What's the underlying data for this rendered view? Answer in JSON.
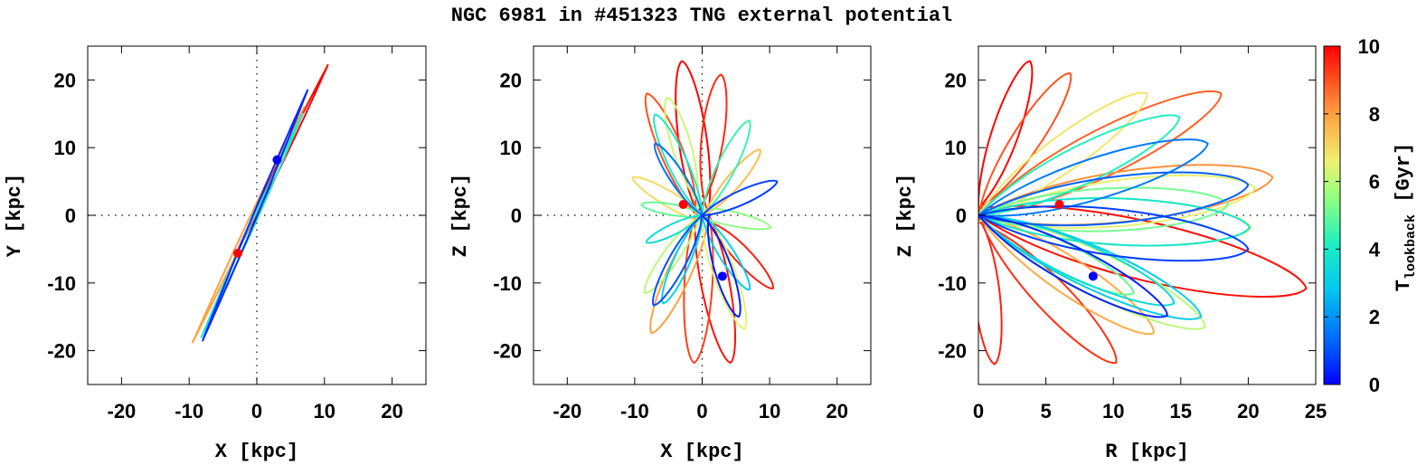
{
  "title": "NGC 6981 in #451323 TNG external potential",
  "colorbar": {
    "label_main": "T",
    "label_sub": "lookback",
    "label_unit": " [Gyr]",
    "range": [
      0,
      10
    ],
    "ticks": [
      "0",
      "2",
      "4",
      "6",
      "8",
      "10"
    ],
    "colors": [
      "#0000ff",
      "#0080ff",
      "#00e0e0",
      "#40ffb0",
      "#c0ff60",
      "#ffe040",
      "#ff9030",
      "#ff0000"
    ]
  },
  "chart_data": [
    {
      "type": "line",
      "panel": "X-Y projection",
      "xlabel": "X [kpc]",
      "ylabel": "Y [kpc]",
      "xlim": [
        -25,
        25
      ],
      "ylim": [
        -25,
        25
      ],
      "xticks": [
        "-20",
        "-10",
        "0",
        "10",
        "20"
      ],
      "yticks": [
        "-20",
        "-10",
        "0",
        "10",
        "20"
      ],
      "zero_lines": true,
      "series": [
        {
          "name": "orbit (old, red)",
          "t": 10,
          "x": [
            -3.0,
            10.5
          ],
          "y": [
            -5.6,
            22.2
          ]
        },
        {
          "name": "orbit (orange)",
          "t": 8,
          "x": [
            -9.5,
            7.0
          ],
          "y": [
            -18.8,
            16.0
          ]
        },
        {
          "name": "orbit (cyan)",
          "t": 4,
          "x": [
            -8.2,
            6.8
          ],
          "y": [
            -18.0,
            15.0
          ]
        },
        {
          "name": "orbit (recent, blue)",
          "t": 0.5,
          "x": [
            -8.0,
            7.5
          ],
          "y": [
            -18.5,
            18.5
          ]
        }
      ],
      "markers": [
        {
          "name": "position now",
          "color": "#0000ff",
          "x": 3.0,
          "y": 8.2
        },
        {
          "name": "position at start",
          "color": "#ff0000",
          "x": -2.8,
          "y": -5.6
        }
      ]
    },
    {
      "type": "line",
      "panel": "X-Z projection",
      "xlabel": "X [kpc]",
      "ylabel": "Z [kpc]",
      "xlim": [
        -25,
        25
      ],
      "ylim": [
        -25,
        25
      ],
      "xticks": [
        "-20",
        "-10",
        "0",
        "10",
        "20"
      ],
      "yticks": [
        "-20",
        "-10",
        "0",
        "10",
        "20"
      ],
      "zero_lines": true,
      "series": [
        {
          "name": "loop red 1",
          "t": 10,
          "points": [
            [
              1,
              1
            ],
            [
              -3,
              22.8
            ],
            [
              -1,
              1
            ]
          ]
        },
        {
          "name": "loop red 2",
          "t": 9.5,
          "points": [
            [
              -1,
              0
            ],
            [
              2.8,
              20.8
            ],
            [
              1,
              0
            ]
          ]
        },
        {
          "name": "loop red 3",
          "t": 9.8,
          "points": [
            [
              -1,
              0
            ],
            [
              4.2,
              -21.8
            ],
            [
              1,
              0
            ]
          ]
        },
        {
          "name": "loop red 4",
          "t": 9.2,
          "points": [
            [
              -1,
              0
            ],
            [
              -1.2,
              -21.8
            ],
            [
              1,
              0
            ]
          ]
        },
        {
          "name": "loop red 5",
          "t": 9.6,
          "points": [
            [
              0,
              1
            ],
            [
              10.5,
              -10.8
            ],
            [
              1,
              -1
            ]
          ]
        },
        {
          "name": "loop red 6",
          "t": 9.0,
          "points": [
            [
              -1,
              1
            ],
            [
              -8.2,
              18.0
            ],
            [
              0,
              -1
            ]
          ]
        },
        {
          "name": "loop orange 1",
          "t": 8,
          "points": [
            [
              0,
              0
            ],
            [
              -7.5,
              -17.4
            ],
            [
              1,
              0
            ]
          ]
        },
        {
          "name": "loop orange 2",
          "t": 7.5,
          "points": [
            [
              0,
              0
            ],
            [
              8.6,
              9.7
            ],
            [
              0,
              -1
            ]
          ]
        },
        {
          "name": "loop orange 3",
          "t": 7.0,
          "points": [
            [
              0,
              0
            ],
            [
              -10.3,
              5.6
            ],
            [
              0,
              -1
            ]
          ]
        },
        {
          "name": "loop yellow 1",
          "t": 6.5,
          "points": [
            [
              0,
              0
            ],
            [
              6.3,
              -16.8
            ],
            [
              0,
              1
            ]
          ]
        },
        {
          "name": "loop yellow 2",
          "t": 6.0,
          "points": [
            [
              0,
              0
            ],
            [
              -8.5,
              -11.5
            ],
            [
              0,
              1
            ]
          ]
        },
        {
          "name": "loop yellow 3",
          "t": 5.5,
          "points": [
            [
              -1,
              0
            ],
            [
              10.2,
              -1.8
            ],
            [
              1,
              1
            ]
          ]
        },
        {
          "name": "loop yellow 4",
          "t": 6.2,
          "points": [
            [
              -1,
              0
            ],
            [
              -5.2,
              17.4
            ],
            [
              1,
              0
            ]
          ]
        },
        {
          "name": "loop green 1",
          "t": 5.0,
          "points": [
            [
              0,
              0
            ],
            [
              -9.0,
              1.6
            ],
            [
              1,
              0
            ]
          ]
        },
        {
          "name": "loop green 2",
          "t": 4.5,
          "points": [
            [
              0,
              0
            ],
            [
              7.0,
              14.0
            ],
            [
              0,
              0
            ]
          ]
        },
        {
          "name": "loop cyan 1",
          "t": 4.0,
          "points": [
            [
              0,
              0
            ],
            [
              -7.0,
              14.9
            ],
            [
              0,
              0
            ]
          ]
        },
        {
          "name": "loop cyan 2",
          "t": 3.5,
          "points": [
            [
              0,
              0
            ],
            [
              -8.3,
              -4.0
            ],
            [
              0,
              0
            ]
          ]
        },
        {
          "name": "loop cyan 3",
          "t": 3.0,
          "points": [
            [
              0,
              0
            ],
            [
              7.0,
              -11.0
            ],
            [
              0,
              0
            ]
          ]
        },
        {
          "name": "loop cyan 4",
          "t": 3.2,
          "points": [
            [
              0,
              0
            ],
            [
              -5.8,
              -13.0
            ],
            [
              0,
              0
            ]
          ]
        },
        {
          "name": "loop blue 1",
          "t": 1.5,
          "points": [
            [
              0,
              0
            ],
            [
              -7.0,
              10.6
            ],
            [
              0,
              0
            ]
          ]
        },
        {
          "name": "loop blue 2",
          "t": 1.0,
          "points": [
            [
              0,
              0
            ],
            [
              -7.2,
              -13.3
            ],
            [
              0,
              0
            ]
          ]
        },
        {
          "name": "loop blue 3",
          "t": 0.8,
          "points": [
            [
              0,
              0
            ],
            [
              11.1,
              5.0
            ],
            [
              0,
              0
            ]
          ]
        },
        {
          "name": "loop blue 4",
          "t": 0.4,
          "points": [
            [
              1,
              0
            ],
            [
              5.4,
              -15.0
            ],
            [
              0,
              0
            ]
          ]
        }
      ],
      "markers": [
        {
          "name": "position now",
          "color": "#0000ff",
          "x": 3.0,
          "y": -9.0
        },
        {
          "name": "position at start",
          "color": "#ff0000",
          "x": -2.8,
          "y": 1.6
        }
      ]
    },
    {
      "type": "line",
      "panel": "R-Z projection",
      "xlabel": "R [kpc]",
      "ylabel": "Z [kpc]",
      "xlim": [
        0,
        25
      ],
      "ylim": [
        -25,
        25
      ],
      "xticks": [
        "0",
        "5",
        "10",
        "15",
        "20",
        "25"
      ],
      "yticks": [
        "-20",
        "-10",
        "0",
        "10",
        "20"
      ],
      "zero_lines": true,
      "series": [
        {
          "name": "loop red 1",
          "t": 10,
          "points": [
            [
              0,
              1
            ],
            [
              3.8,
              22.8
            ],
            [
              0,
              0
            ]
          ]
        },
        {
          "name": "loop red 2",
          "t": 9.8,
          "points": [
            [
              0,
              0
            ],
            [
              24.3,
              -10.8
            ],
            [
              0,
              1
            ]
          ]
        },
        {
          "name": "loop red 3",
          "t": 9.6,
          "points": [
            [
              0,
              0
            ],
            [
              1.2,
              -22.0
            ],
            [
              0,
              0
            ]
          ]
        },
        {
          "name": "loop red 4",
          "t": 9.4,
          "points": [
            [
              0,
              0
            ],
            [
              10.2,
              -21.8
            ],
            [
              0,
              -1
            ]
          ]
        },
        {
          "name": "loop orange 1",
          "t": 9.0,
          "points": [
            [
              0,
              1
            ],
            [
              6.8,
              21.0
            ],
            [
              0,
              0
            ]
          ]
        },
        {
          "name": "loop orange 2",
          "t": 8.8,
          "points": [
            [
              0,
              0
            ],
            [
              18.0,
              18.0
            ],
            [
              0,
              0
            ]
          ]
        },
        {
          "name": "loop orange 3",
          "t": 8.2,
          "points": [
            [
              0,
              0
            ],
            [
              21.8,
              5.6
            ],
            [
              0,
              0
            ]
          ]
        },
        {
          "name": "loop orange 4",
          "t": 7.8,
          "points": [
            [
              0,
              0
            ],
            [
              13.0,
              -17.4
            ],
            [
              0,
              0
            ]
          ]
        },
        {
          "name": "loop yellow 1",
          "t": 6.8,
          "points": [
            [
              0,
              0
            ],
            [
              12.5,
              18.0
            ],
            [
              0,
              0
            ]
          ]
        },
        {
          "name": "loop yellow 2",
          "t": 6.5,
          "points": [
            [
              0,
              0
            ],
            [
              20.5,
              4.0
            ],
            [
              0,
              -1
            ]
          ]
        },
        {
          "name": "loop yellow 3",
          "t": 6.2,
          "points": [
            [
              0,
              0
            ],
            [
              20.2,
              -1.8
            ],
            [
              0,
              0
            ]
          ]
        },
        {
          "name": "loop yellow 4",
          "t": 6.0,
          "points": [
            [
              0,
              0
            ],
            [
              16.8,
              -16.5
            ],
            [
              0,
              0
            ]
          ]
        },
        {
          "name": "loop green 1",
          "t": 5.2,
          "points": [
            [
              0,
              0
            ],
            [
              18.5,
              1.6
            ],
            [
              0,
              0
            ]
          ]
        },
        {
          "name": "loop green 2",
          "t": 5.0,
          "points": [
            [
              0,
              0
            ],
            [
              11.5,
              -11.5
            ],
            [
              0,
              0
            ]
          ]
        },
        {
          "name": "loop cyan 1",
          "t": 4.2,
          "points": [
            [
              0,
              0
            ],
            [
              14.9,
              14.5
            ],
            [
              0,
              0
            ]
          ]
        },
        {
          "name": "loop cyan 2",
          "t": 3.8,
          "points": [
            [
              0,
              0
            ],
            [
              20.1,
              -1.8
            ],
            [
              0,
              0
            ]
          ]
        },
        {
          "name": "loop cyan 3",
          "t": 3.4,
          "points": [
            [
              0,
              0
            ],
            [
              14.5,
              -13.0
            ],
            [
              0,
              0
            ]
          ]
        },
        {
          "name": "loop cyan 4",
          "t": 3.0,
          "points": [
            [
              0,
              0
            ],
            [
              16.5,
              -15.0
            ],
            [
              0,
              0
            ]
          ]
        },
        {
          "name": "loop blue 1",
          "t": 1.6,
          "points": [
            [
              0,
              0
            ],
            [
              17.0,
              10.6
            ],
            [
              0,
              0
            ]
          ]
        },
        {
          "name": "loop blue 2",
          "t": 1.2,
          "points": [
            [
              0,
              0
            ],
            [
              20.0,
              4.5
            ],
            [
              0,
              0
            ]
          ]
        },
        {
          "name": "loop blue 3",
          "t": 0.8,
          "points": [
            [
              0,
              0
            ],
            [
              20.0,
              -5.0
            ],
            [
              0,
              0
            ]
          ]
        },
        {
          "name": "loop blue 4",
          "t": 0.4,
          "points": [
            [
              0,
              0
            ],
            [
              14.0,
              -14.8
            ],
            [
              0,
              0
            ]
          ]
        }
      ],
      "markers": [
        {
          "name": "position now",
          "color": "#0000ff",
          "x": 8.5,
          "y": -9.0
        },
        {
          "name": "position at start",
          "color": "#ff0000",
          "x": 6.0,
          "y": 1.6
        }
      ]
    }
  ]
}
